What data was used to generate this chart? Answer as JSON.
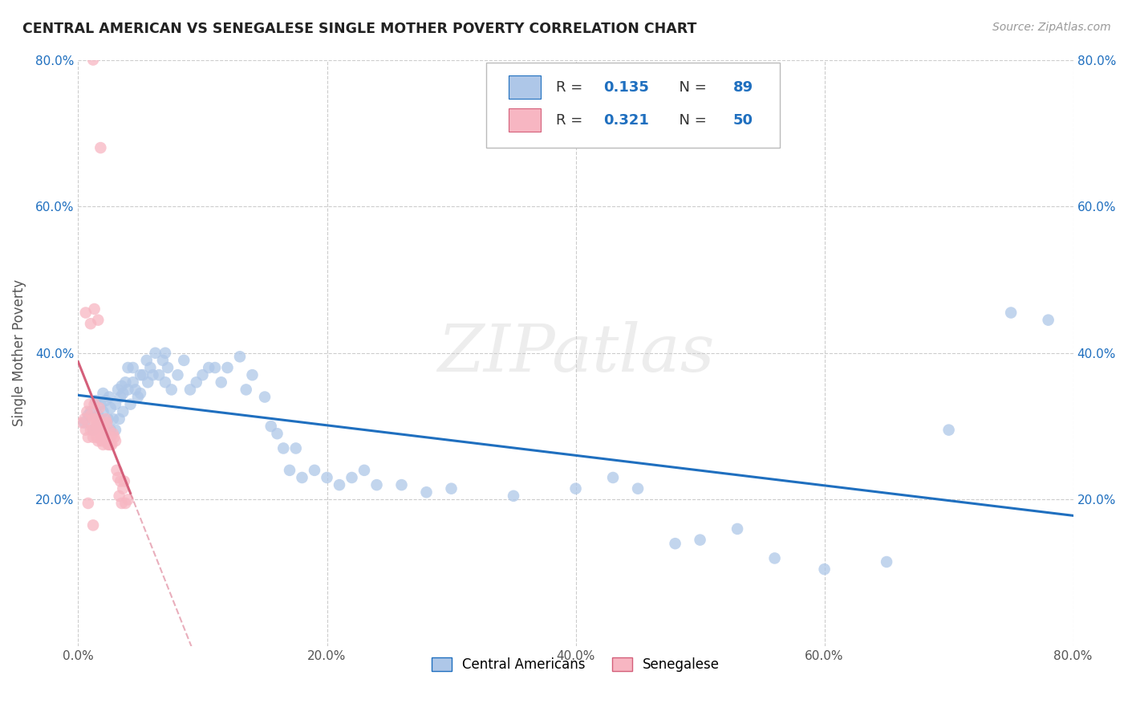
{
  "title": "CENTRAL AMERICAN VS SENEGALESE SINGLE MOTHER POVERTY CORRELATION CHART",
  "source": "Source: ZipAtlas.com",
  "ylabel": "Single Mother Poverty",
  "watermark": "ZIPatlas",
  "xlim": [
    0.0,
    0.8
  ],
  "ylim": [
    0.0,
    0.8
  ],
  "xticks": [
    0.0,
    0.2,
    0.4,
    0.6,
    0.8
  ],
  "yticks": [
    0.2,
    0.4,
    0.6,
    0.8
  ],
  "xtick_labels": [
    "0.0%",
    "20.0%",
    "40.0%",
    "60.0%",
    "80.0%"
  ],
  "ytick_labels": [
    "20.0%",
    "40.0%",
    "60.0%",
    "80.0%"
  ],
  "blue_R": 0.135,
  "blue_N": 89,
  "pink_R": 0.321,
  "pink_N": 50,
  "blue_color": "#aec7e8",
  "pink_color": "#f7b6c2",
  "blue_line_color": "#1f6fbf",
  "pink_line_color": "#d45f7a",
  "grid_color": "#cccccc",
  "background_color": "#ffffff",
  "blue_points_x": [
    0.005,
    0.008,
    0.01,
    0.012,
    0.014,
    0.015,
    0.016,
    0.018,
    0.018,
    0.02,
    0.02,
    0.022,
    0.022,
    0.024,
    0.025,
    0.026,
    0.026,
    0.028,
    0.03,
    0.03,
    0.032,
    0.033,
    0.034,
    0.035,
    0.036,
    0.036,
    0.038,
    0.04,
    0.04,
    0.042,
    0.044,
    0.044,
    0.046,
    0.048,
    0.05,
    0.05,
    0.052,
    0.055,
    0.056,
    0.058,
    0.06,
    0.062,
    0.065,
    0.068,
    0.07,
    0.07,
    0.072,
    0.075,
    0.08,
    0.085,
    0.09,
    0.095,
    0.1,
    0.105,
    0.11,
    0.115,
    0.12,
    0.13,
    0.135,
    0.14,
    0.15,
    0.155,
    0.16,
    0.165,
    0.17,
    0.175,
    0.18,
    0.19,
    0.2,
    0.21,
    0.22,
    0.23,
    0.24,
    0.26,
    0.28,
    0.3,
    0.35,
    0.4,
    0.43,
    0.45,
    0.48,
    0.5,
    0.53,
    0.56,
    0.6,
    0.65,
    0.7,
    0.75,
    0.78
  ],
  "blue_points_y": [
    0.305,
    0.315,
    0.32,
    0.295,
    0.335,
    0.3,
    0.315,
    0.33,
    0.305,
    0.345,
    0.32,
    0.295,
    0.335,
    0.31,
    0.34,
    0.295,
    0.325,
    0.31,
    0.295,
    0.33,
    0.35,
    0.31,
    0.34,
    0.355,
    0.32,
    0.345,
    0.36,
    0.35,
    0.38,
    0.33,
    0.36,
    0.38,
    0.35,
    0.34,
    0.37,
    0.345,
    0.37,
    0.39,
    0.36,
    0.38,
    0.37,
    0.4,
    0.37,
    0.39,
    0.36,
    0.4,
    0.38,
    0.35,
    0.37,
    0.39,
    0.35,
    0.36,
    0.37,
    0.38,
    0.38,
    0.36,
    0.38,
    0.395,
    0.35,
    0.37,
    0.34,
    0.3,
    0.29,
    0.27,
    0.24,
    0.27,
    0.23,
    0.24,
    0.23,
    0.22,
    0.23,
    0.24,
    0.22,
    0.22,
    0.21,
    0.215,
    0.205,
    0.215,
    0.23,
    0.215,
    0.14,
    0.145,
    0.16,
    0.12,
    0.105,
    0.115,
    0.295,
    0.455,
    0.445
  ],
  "pink_points_x": [
    0.003,
    0.005,
    0.006,
    0.007,
    0.008,
    0.009,
    0.01,
    0.01,
    0.011,
    0.012,
    0.012,
    0.013,
    0.013,
    0.014,
    0.015,
    0.015,
    0.016,
    0.016,
    0.017,
    0.017,
    0.018,
    0.018,
    0.019,
    0.019,
    0.02,
    0.02,
    0.021,
    0.021,
    0.022,
    0.022,
    0.023,
    0.023,
    0.024,
    0.025,
    0.025,
    0.026,
    0.026,
    0.027,
    0.028,
    0.029,
    0.03,
    0.031,
    0.032,
    0.033,
    0.034,
    0.035,
    0.036,
    0.037,
    0.038,
    0.04
  ],
  "pink_points_y": [
    0.305,
    0.31,
    0.295,
    0.32,
    0.285,
    0.33,
    0.295,
    0.315,
    0.3,
    0.285,
    0.31,
    0.295,
    0.33,
    0.31,
    0.285,
    0.3,
    0.31,
    0.28,
    0.295,
    0.325,
    0.3,
    0.29,
    0.28,
    0.305,
    0.29,
    0.275,
    0.285,
    0.3,
    0.31,
    0.29,
    0.28,
    0.305,
    0.275,
    0.275,
    0.295,
    0.275,
    0.285,
    0.275,
    0.29,
    0.285,
    0.28,
    0.24,
    0.23,
    0.205,
    0.225,
    0.195,
    0.215,
    0.225,
    0.195,
    0.2
  ],
  "pink_outliers_x": [
    0.012,
    0.018,
    0.006,
    0.01,
    0.013,
    0.016,
    0.008,
    0.012
  ],
  "pink_outliers_y": [
    0.8,
    0.68,
    0.455,
    0.44,
    0.46,
    0.445,
    0.195,
    0.165
  ]
}
